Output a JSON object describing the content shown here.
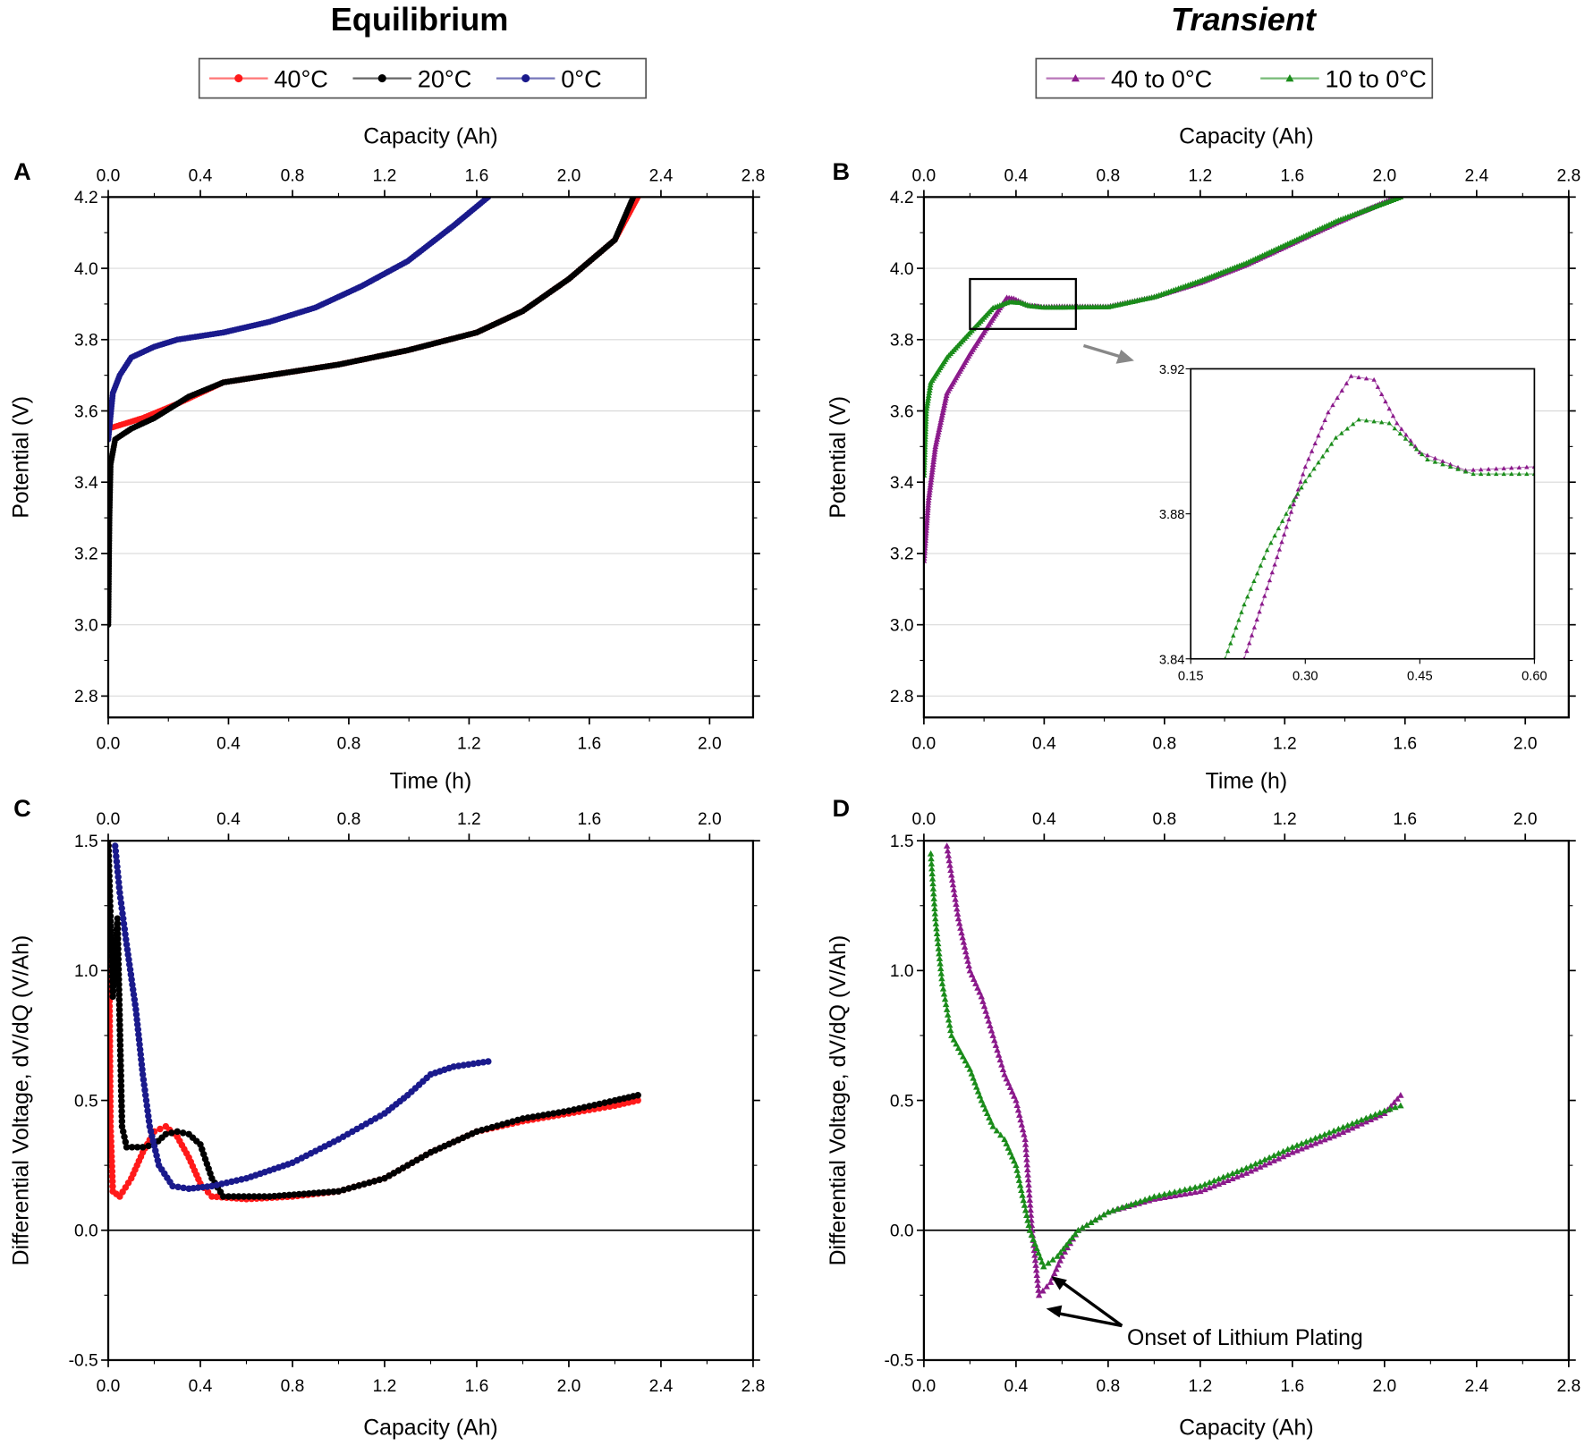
{
  "titles": {
    "left": "Equilibrium",
    "right": "Transient"
  },
  "colors": {
    "red": "#ff1a1a",
    "black": "#000000",
    "blue": "#1a1a8c",
    "purple": "#8b1a8b",
    "green": "#1a8c1a",
    "grid": "#d9d9d9"
  },
  "legends": {
    "left": [
      {
        "label": "40°C",
        "color": "#ff1a1a",
        "marker": "circle"
      },
      {
        "label": "20°C",
        "color": "#000000",
        "marker": "circle"
      },
      {
        "label": "0°C",
        "color": "#1a1a8c",
        "marker": "circle"
      }
    ],
    "right": [
      {
        "label": "40 to 0°C",
        "color": "#8b1a8b",
        "marker": "triangle"
      },
      {
        "label": "10 to 0°C",
        "color": "#1a8c1a",
        "marker": "triangle"
      }
    ]
  },
  "chart_data": [
    {
      "panel": "A",
      "type": "line",
      "xlabel": "Time (h)",
      "x2label": "Capacity (Ah)",
      "ylabel": "Potential (V)",
      "xlim": [
        0,
        2.8
      ],
      "ylim": [
        2.74,
        4.2
      ],
      "xticks_capacity": [
        "0.0",
        "0.4",
        "0.8",
        "1.2",
        "1.6",
        "2.0",
        "2.4",
        "2.8"
      ],
      "xticks_time": [
        "0.0",
        "0.4",
        "0.8",
        "1.2",
        "1.6",
        "2.0"
      ],
      "yticks": [
        "2.8",
        "3.0",
        "3.2",
        "3.4",
        "3.6",
        "3.8",
        "4.0",
        "4.2"
      ],
      "grid": true,
      "series": [
        {
          "name": "40°C",
          "color": "#ff1a1a",
          "marker": "circle",
          "points": [
            [
              0,
              3.55
            ],
            [
              0.05,
              3.56
            ],
            [
              0.15,
              3.58
            ],
            [
              0.3,
              3.62
            ],
            [
              0.5,
              3.68
            ],
            [
              0.7,
              3.7
            ],
            [
              1.0,
              3.73
            ],
            [
              1.3,
              3.77
            ],
            [
              1.6,
              3.82
            ],
            [
              1.8,
              3.88
            ],
            [
              2.0,
              3.97
            ],
            [
              2.2,
              4.08
            ],
            [
              2.3,
              4.2
            ]
          ]
        },
        {
          "name": "20°C",
          "color": "#000000",
          "marker": "circle",
          "points": [
            [
              0,
              3.0
            ],
            [
              0.005,
              3.3
            ],
            [
              0.01,
              3.45
            ],
            [
              0.03,
              3.52
            ],
            [
              0.1,
              3.55
            ],
            [
              0.2,
              3.58
            ],
            [
              0.35,
              3.64
            ],
            [
              0.5,
              3.68
            ],
            [
              0.7,
              3.7
            ],
            [
              1.0,
              3.73
            ],
            [
              1.3,
              3.77
            ],
            [
              1.6,
              3.82
            ],
            [
              1.8,
              3.88
            ],
            [
              2.0,
              3.97
            ],
            [
              2.2,
              4.08
            ],
            [
              2.28,
              4.2
            ]
          ]
        },
        {
          "name": "0°C",
          "color": "#1a1a8c",
          "marker": "circle",
          "points": [
            [
              0,
              3.52
            ],
            [
              0.02,
              3.65
            ],
            [
              0.05,
              3.7
            ],
            [
              0.1,
              3.75
            ],
            [
              0.2,
              3.78
            ],
            [
              0.3,
              3.8
            ],
            [
              0.5,
              3.82
            ],
            [
              0.7,
              3.85
            ],
            [
              0.9,
              3.89
            ],
            [
              1.1,
              3.95
            ],
            [
              1.3,
              4.02
            ],
            [
              1.5,
              4.12
            ],
            [
              1.65,
              4.2
            ]
          ]
        }
      ]
    },
    {
      "panel": "B",
      "type": "line",
      "xlabel": "Time (h)",
      "x2label": "Capacity (Ah)",
      "ylabel": "Potential (V)",
      "xlim": [
        0,
        2.8
      ],
      "ylim": [
        2.74,
        4.2
      ],
      "xticks_capacity": [
        "0.0",
        "0.4",
        "0.8",
        "1.2",
        "1.6",
        "2.0",
        "2.4",
        "2.8"
      ],
      "xticks_time": [
        "0.0",
        "0.4",
        "0.8",
        "1.2",
        "1.6",
        "2.0"
      ],
      "yticks": [
        "2.8",
        "3.0",
        "3.2",
        "3.4",
        "3.6",
        "3.8",
        "4.0",
        "4.2"
      ],
      "grid": true,
      "series": [
        {
          "name": "40 to 0°C",
          "color": "#8b1a8b",
          "marker": "triangle",
          "points": [
            [
              0,
              3.18
            ],
            [
              0.02,
              3.35
            ],
            [
              0.05,
              3.5
            ],
            [
              0.1,
              3.65
            ],
            [
              0.2,
              3.76
            ],
            [
              0.3,
              3.86
            ],
            [
              0.36,
              3.918
            ],
            [
              0.39,
              3.915
            ],
            [
              0.45,
              3.897
            ],
            [
              0.51,
              3.892
            ],
            [
              0.6,
              3.893
            ],
            [
              0.8,
              3.893
            ],
            [
              1.0,
              3.92
            ],
            [
              1.2,
              3.96
            ],
            [
              1.4,
              4.01
            ],
            [
              1.6,
              4.07
            ],
            [
              1.8,
              4.13
            ],
            [
              2.05,
              4.2
            ]
          ]
        },
        {
          "name": "10 to 0°C",
          "color": "#1a8c1a",
          "marker": "triangle",
          "points": [
            [
              0,
              3.42
            ],
            [
              0.01,
              3.6
            ],
            [
              0.03,
              3.68
            ],
            [
              0.1,
              3.75
            ],
            [
              0.2,
              3.82
            ],
            [
              0.3,
              3.889
            ],
            [
              0.37,
              3.906
            ],
            [
              0.42,
              3.904
            ],
            [
              0.46,
              3.895
            ],
            [
              0.52,
              3.891
            ],
            [
              0.6,
              3.891
            ],
            [
              0.8,
              3.892
            ],
            [
              1.0,
              3.92
            ],
            [
              1.2,
              3.965
            ],
            [
              1.4,
              4.015
            ],
            [
              1.6,
              4.075
            ],
            [
              1.8,
              4.135
            ],
            [
              2.07,
              4.2
            ]
          ]
        }
      ],
      "inset": {
        "xlim": [
          0.15,
          0.6
        ],
        "ylim": [
          3.84,
          3.92
        ],
        "xticks": [
          "0.15",
          "0.30",
          "0.45",
          "0.60"
        ],
        "yticks": [
          "3.84",
          "3.88",
          "3.92"
        ],
        "series": [
          {
            "name": "40 to 0°C",
            "color": "#8b1a8b",
            "points": [
              [
                0.22,
                3.84
              ],
              [
                0.26,
                3.866
              ],
              [
                0.3,
                3.893
              ],
              [
                0.33,
                3.908
              ],
              [
                0.36,
                3.918
              ],
              [
                0.39,
                3.917
              ],
              [
                0.42,
                3.905
              ],
              [
                0.45,
                3.897
              ],
              [
                0.51,
                3.892
              ],
              [
                0.6,
                3.893
              ]
            ]
          },
          {
            "name": "10 to 0°C",
            "color": "#1a8c1a",
            "points": [
              [
                0.195,
                3.84
              ],
              [
                0.22,
                3.855
              ],
              [
                0.25,
                3.87
              ],
              [
                0.28,
                3.882
              ],
              [
                0.3,
                3.889
              ],
              [
                0.34,
                3.901
              ],
              [
                0.37,
                3.906
              ],
              [
                0.41,
                3.905
              ],
              [
                0.46,
                3.895
              ],
              [
                0.52,
                3.891
              ],
              [
                0.6,
                3.891
              ]
            ]
          }
        ]
      }
    },
    {
      "panel": "C",
      "type": "scatter",
      "xlabel": "Capacity (Ah)",
      "x2label": "",
      "ylabel": "Differential Voltage, dV/dQ (V/Ah)",
      "xlim": [
        0,
        2.8
      ],
      "ylim": [
        -0.5,
        1.5
      ],
      "xticks_capacity": [
        "0.0",
        "0.4",
        "0.8",
        "1.2",
        "1.6",
        "2.0",
        "2.4",
        "2.8"
      ],
      "xticks_time": [
        "0.0",
        "0.4",
        "0.8",
        "1.2",
        "1.6",
        "2.0"
      ],
      "yticks": [
        "-0.5",
        "0.0",
        "0.5",
        "1.0",
        "1.5"
      ],
      "grid": false,
      "series": [
        {
          "name": "40°C",
          "color": "#ff1a1a",
          "marker": "circle",
          "points": [
            [
              0.0,
              1.5
            ],
            [
              0.01,
              0.4
            ],
            [
              0.02,
              0.15
            ],
            [
              0.05,
              0.13
            ],
            [
              0.1,
              0.2
            ],
            [
              0.15,
              0.3
            ],
            [
              0.2,
              0.38
            ],
            [
              0.25,
              0.4
            ],
            [
              0.3,
              0.36
            ],
            [
              0.35,
              0.28
            ],
            [
              0.4,
              0.18
            ],
            [
              0.45,
              0.13
            ],
            [
              0.6,
              0.12
            ],
            [
              0.8,
              0.13
            ],
            [
              1.0,
              0.15
            ],
            [
              1.2,
              0.2
            ],
            [
              1.4,
              0.3
            ],
            [
              1.6,
              0.38
            ],
            [
              1.8,
              0.42
            ],
            [
              2.0,
              0.45
            ],
            [
              2.2,
              0.48
            ],
            [
              2.3,
              0.5
            ]
          ]
        },
        {
          "name": "20°C",
          "color": "#000000",
          "marker": "circle",
          "points": [
            [
              0.0,
              1.5
            ],
            [
              0.02,
              0.9
            ],
            [
              0.04,
              1.2
            ],
            [
              0.06,
              0.4
            ],
            [
              0.08,
              0.32
            ],
            [
              0.15,
              0.32
            ],
            [
              0.2,
              0.33
            ],
            [
              0.25,
              0.37
            ],
            [
              0.3,
              0.38
            ],
            [
              0.35,
              0.37
            ],
            [
              0.4,
              0.33
            ],
            [
              0.45,
              0.2
            ],
            [
              0.5,
              0.13
            ],
            [
              0.7,
              0.13
            ],
            [
              1.0,
              0.15
            ],
            [
              1.2,
              0.2
            ],
            [
              1.4,
              0.3
            ],
            [
              1.6,
              0.38
            ],
            [
              1.8,
              0.43
            ],
            [
              2.0,
              0.46
            ],
            [
              2.2,
              0.5
            ],
            [
              2.3,
              0.52
            ]
          ]
        },
        {
          "name": "0°C",
          "color": "#1a1a8c",
          "marker": "circle",
          "points": [
            [
              0.03,
              1.48
            ],
            [
              0.05,
              1.3
            ],
            [
              0.08,
              1.1
            ],
            [
              0.12,
              0.85
            ],
            [
              0.15,
              0.6
            ],
            [
              0.18,
              0.4
            ],
            [
              0.22,
              0.25
            ],
            [
              0.28,
              0.17
            ],
            [
              0.35,
              0.16
            ],
            [
              0.45,
              0.17
            ],
            [
              0.6,
              0.2
            ],
            [
              0.8,
              0.26
            ],
            [
              1.0,
              0.35
            ],
            [
              1.2,
              0.45
            ],
            [
              1.3,
              0.52
            ],
            [
              1.4,
              0.6
            ],
            [
              1.5,
              0.63
            ],
            [
              1.65,
              0.65
            ]
          ]
        }
      ]
    },
    {
      "panel": "D",
      "type": "scatter",
      "xlabel": "Capacity (Ah)",
      "x2label": "",
      "ylabel": "Differential Voltage, dV/dQ (V/Ah)",
      "xlim": [
        0,
        2.8
      ],
      "ylim": [
        -0.5,
        1.5
      ],
      "xticks_capacity": [
        "0.0",
        "0.4",
        "0.8",
        "1.2",
        "1.6",
        "2.0",
        "2.4",
        "2.8"
      ],
      "xticks_time": [
        "0.0",
        "0.4",
        "0.8",
        "1.2",
        "1.6",
        "2.0"
      ],
      "yticks": [
        "-0.5",
        "0.0",
        "0.5",
        "1.0",
        "1.5"
      ],
      "grid": false,
      "annotation": "Onset of Lithium Plating",
      "series": [
        {
          "name": "40 to 0°C",
          "color": "#8b1a8b",
          "marker": "triangle",
          "points": [
            [
              0.1,
              1.48
            ],
            [
              0.15,
              1.2
            ],
            [
              0.2,
              1.0
            ],
            [
              0.25,
              0.9
            ],
            [
              0.3,
              0.75
            ],
            [
              0.35,
              0.6
            ],
            [
              0.4,
              0.5
            ],
            [
              0.44,
              0.35
            ],
            [
              0.47,
              0.0
            ],
            [
              0.5,
              -0.25
            ],
            [
              0.55,
              -0.2
            ],
            [
              0.6,
              -0.1
            ],
            [
              0.67,
              0.0
            ],
            [
              0.8,
              0.07
            ],
            [
              1.0,
              0.12
            ],
            [
              1.2,
              0.15
            ],
            [
              1.4,
              0.22
            ],
            [
              1.6,
              0.3
            ],
            [
              1.8,
              0.37
            ],
            [
              2.0,
              0.45
            ],
            [
              2.07,
              0.52
            ]
          ]
        },
        {
          "name": "10 to 0°C",
          "color": "#1a8c1a",
          "marker": "triangle",
          "points": [
            [
              0.03,
              1.45
            ],
            [
              0.05,
              1.2
            ],
            [
              0.08,
              0.95
            ],
            [
              0.12,
              0.75
            ],
            [
              0.2,
              0.62
            ],
            [
              0.25,
              0.5
            ],
            [
              0.3,
              0.4
            ],
            [
              0.35,
              0.35
            ],
            [
              0.4,
              0.25
            ],
            [
              0.46,
              0.0
            ],
            [
              0.52,
              -0.14
            ],
            [
              0.58,
              -0.1
            ],
            [
              0.67,
              0.0
            ],
            [
              0.8,
              0.07
            ],
            [
              1.0,
              0.13
            ],
            [
              1.2,
              0.17
            ],
            [
              1.4,
              0.24
            ],
            [
              1.6,
              0.32
            ],
            [
              1.8,
              0.39
            ],
            [
              2.0,
              0.46
            ],
            [
              2.07,
              0.48
            ]
          ]
        }
      ]
    }
  ]
}
